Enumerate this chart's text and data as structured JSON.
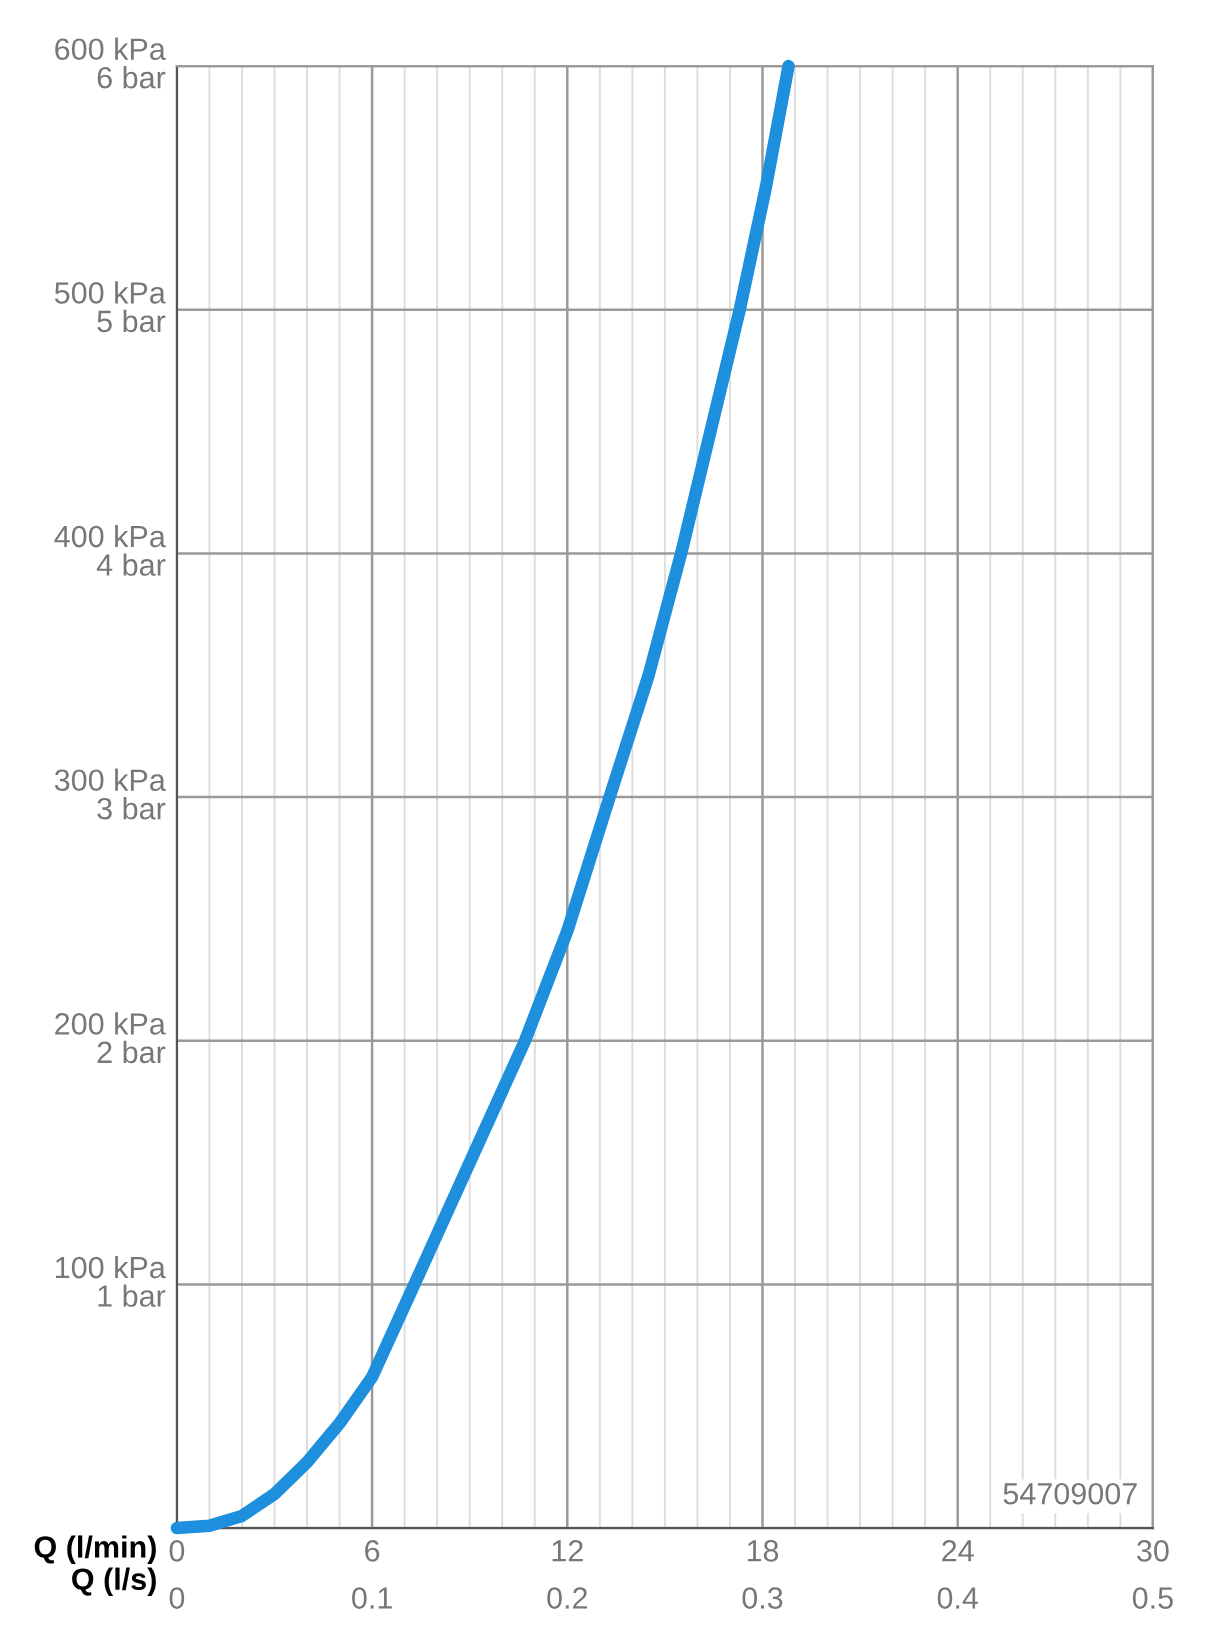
{
  "chart_data": {
    "type": "line",
    "x": [
      0,
      1,
      2,
      3,
      4,
      5,
      6,
      7.3,
      9,
      10.7,
      12,
      13.3,
      14.5,
      15.5,
      16.4,
      17.3,
      18.1,
      18.8
    ],
    "series": [
      {
        "color": "#1e8fdc",
        "values": [
          0,
          1,
          5,
          14,
          27,
          43,
          62,
          100,
          150,
          200,
          245,
          300,
          350,
          400,
          450,
          500,
          550,
          600
        ]
      }
    ],
    "xlabel": "Q (l/min)",
    "x2label": "Q (l/s)",
    "xlim": [
      0,
      30
    ],
    "xticks": [
      0,
      6,
      12,
      18,
      24,
      30
    ],
    "x2lim": [
      0,
      0.5
    ],
    "x2ticks": [
      0,
      0.1,
      0.2,
      0.3,
      0.4,
      0.5
    ],
    "ylim": [
      0,
      600
    ],
    "yticks": [
      {
        "value": 0,
        "label": null
      },
      {
        "value": 100,
        "label": "100 kPa"
      },
      {
        "value": 200,
        "label": "200 kPa"
      },
      {
        "value": 300,
        "label": "300 kPa"
      },
      {
        "value": 400,
        "label": "400 kPa"
      },
      {
        "value": 500,
        "label": "500 kPa"
      },
      {
        "value": 600,
        "label": "600 kPa"
      }
    ],
    "y2lim": [
      0,
      6
    ],
    "y2ticks": [
      {
        "value": 0,
        "label": null
      },
      {
        "value": 1,
        "label": "1 bar"
      },
      {
        "value": 2,
        "label": "2 bar"
      },
      {
        "value": 3,
        "label": "3 bar"
      },
      {
        "value": 4,
        "label": "4 bar"
      },
      {
        "value": 5,
        "label": "5 bar"
      },
      {
        "value": 6,
        "label": "6 bar"
      }
    ],
    "grid": true,
    "legend": false,
    "marker": "none",
    "line_style": "solid",
    "annotations": [
      "54709007"
    ]
  }
}
